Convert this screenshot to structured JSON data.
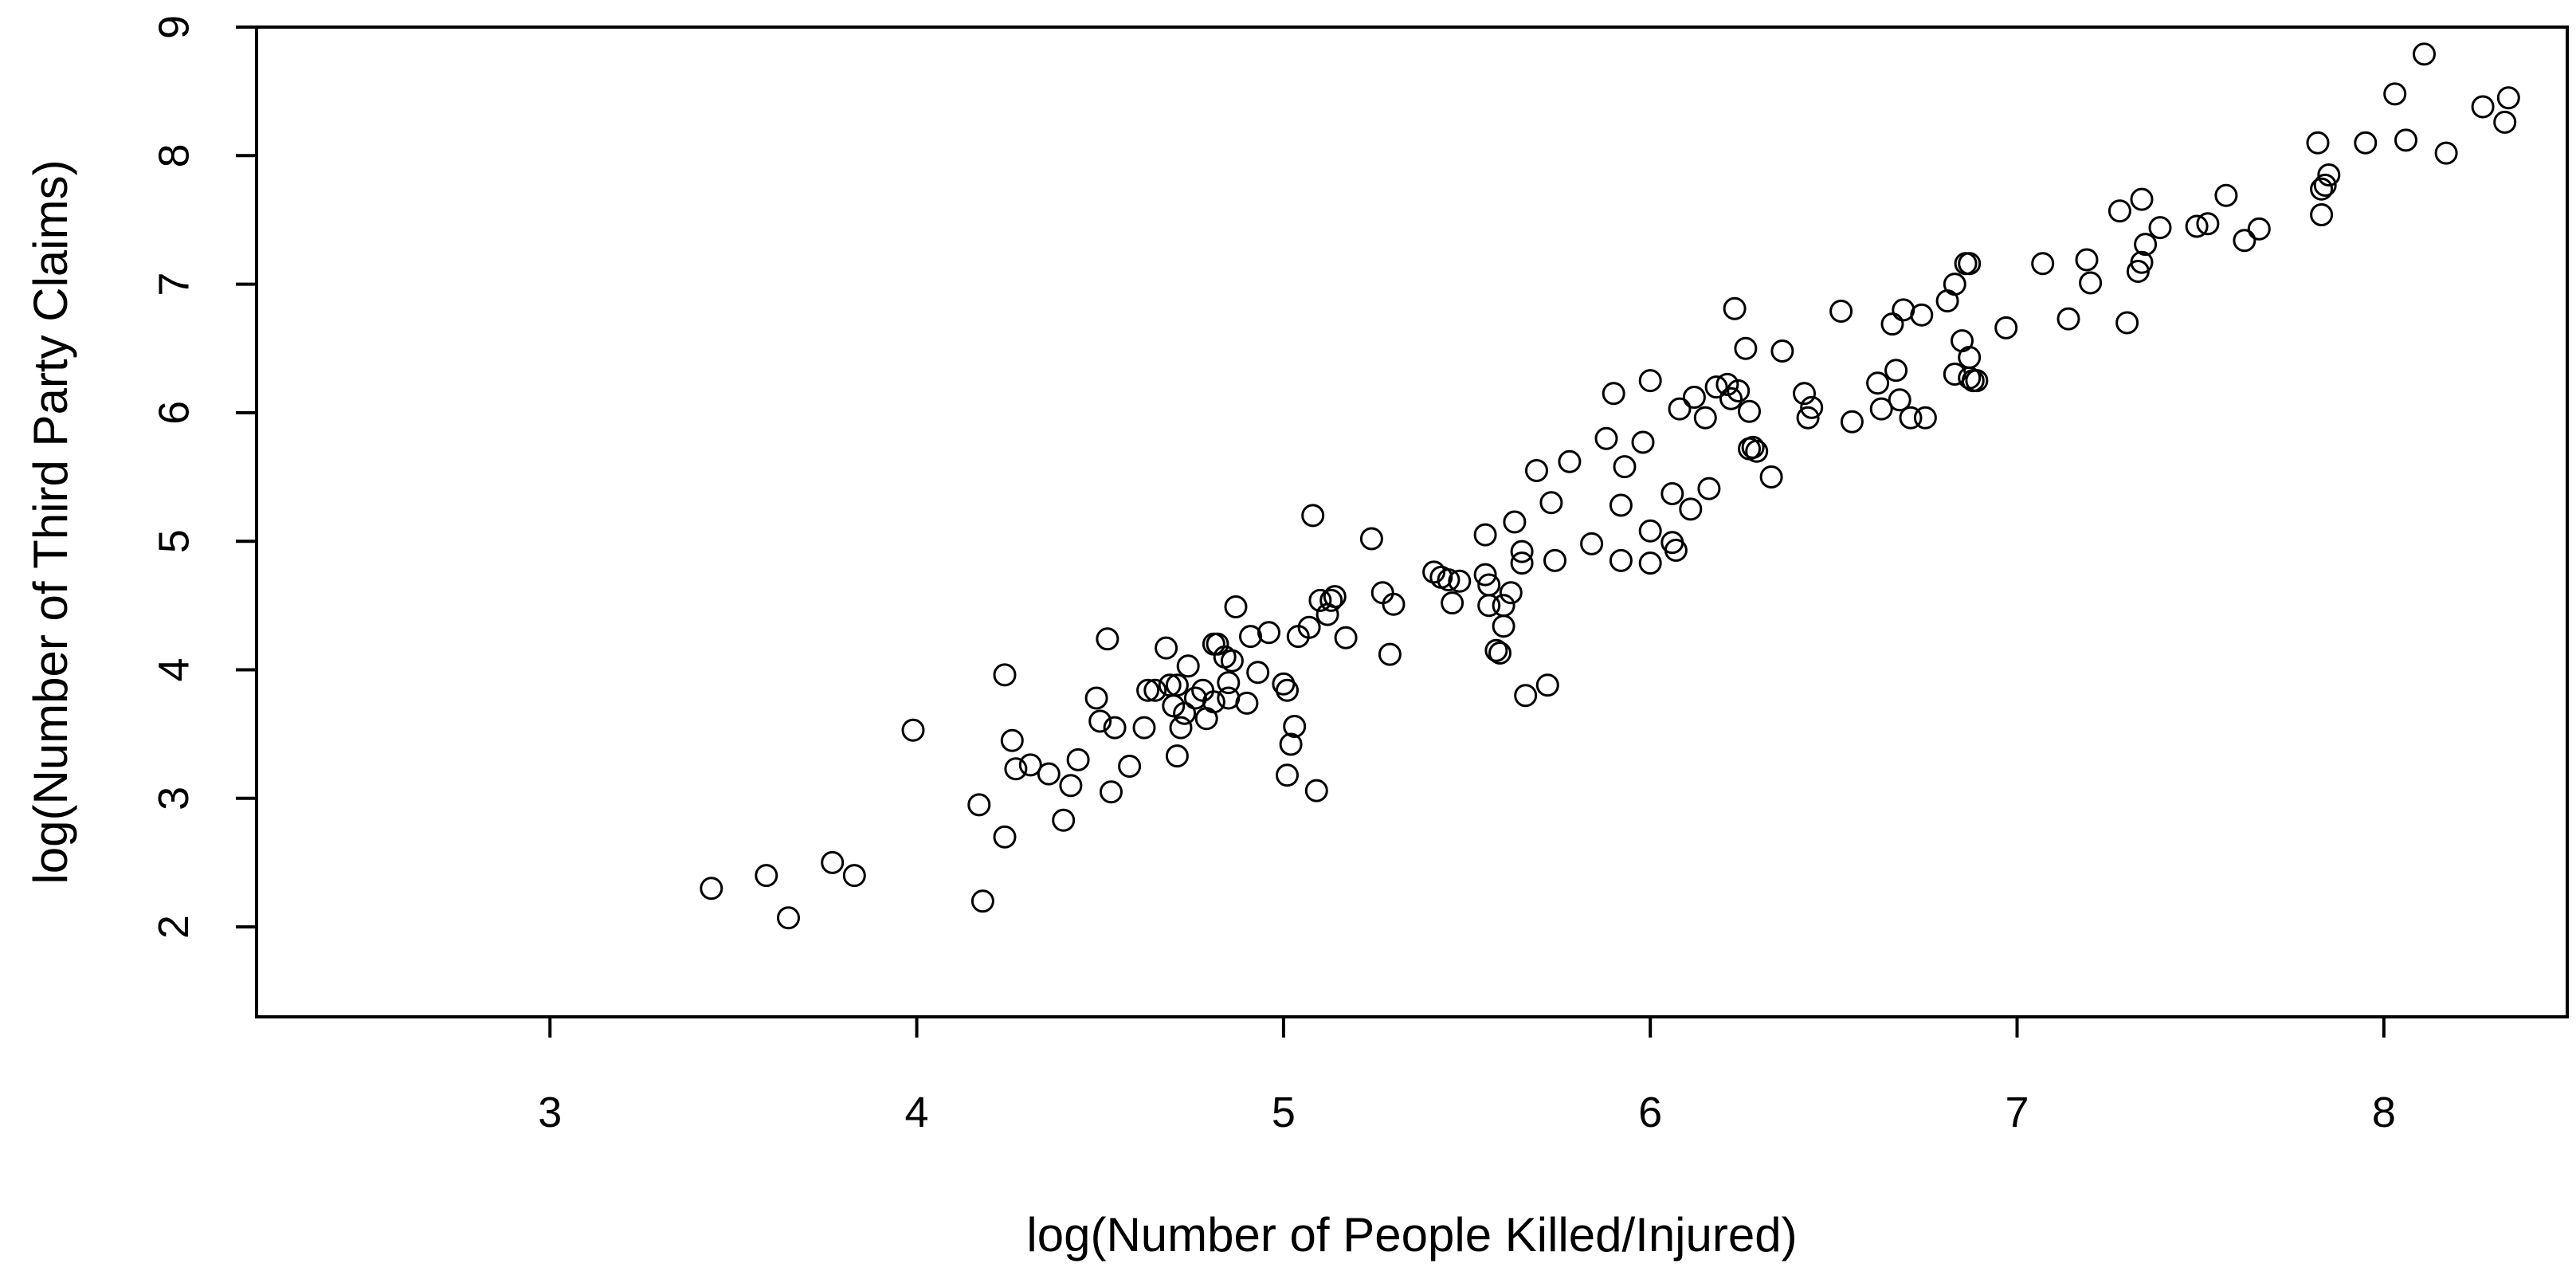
{
  "chart_data": {
    "type": "scatter",
    "title": "",
    "xlabel": "log(Number of People Killed/Injured)",
    "ylabel": "log(Number of Third Party Claims)",
    "xlim": [
      2.2,
      8.5
    ],
    "ylim": [
      1.3,
      9.0
    ],
    "x_ticks": [
      3,
      4,
      5,
      6,
      7,
      8
    ],
    "y_ticks": [
      2,
      3,
      4,
      5,
      6,
      7,
      8,
      9
    ],
    "x_tick_labels": [
      "3",
      "4",
      "5",
      "6",
      "7",
      "8"
    ],
    "y_tick_labels": [
      "2",
      "3",
      "4",
      "5",
      "6",
      "7",
      "8",
      "9"
    ],
    "grid": false,
    "legend": "none",
    "marker": "open-circle",
    "marker_color": "#000000",
    "points": [
      [
        3.44,
        2.3
      ],
      [
        3.59,
        2.4
      ],
      [
        3.65,
        2.07
      ],
      [
        3.77,
        2.5
      ],
      [
        3.83,
        2.4
      ],
      [
        3.99,
        3.53
      ],
      [
        4.17,
        2.95
      ],
      [
        4.18,
        2.2
      ],
      [
        4.24,
        3.96
      ],
      [
        4.24,
        2.7
      ],
      [
        4.26,
        3.45
      ],
      [
        4.27,
        3.23
      ],
      [
        4.31,
        3.26
      ],
      [
        4.36,
        3.19
      ],
      [
        4.4,
        2.83
      ],
      [
        4.42,
        3.1
      ],
      [
        4.44,
        3.3
      ],
      [
        4.49,
        3.78
      ],
      [
        4.5,
        3.6
      ],
      [
        4.52,
        4.24
      ],
      [
        4.53,
        3.05
      ],
      [
        4.54,
        3.55
      ],
      [
        4.58,
        3.25
      ],
      [
        4.62,
        3.55
      ],
      [
        4.63,
        3.84
      ],
      [
        4.65,
        3.84
      ],
      [
        4.68,
        4.17
      ],
      [
        4.69,
        3.88
      ],
      [
        4.7,
        3.72
      ],
      [
        4.71,
        3.33
      ],
      [
        4.71,
        3.88
      ],
      [
        4.72,
        3.55
      ],
      [
        4.73,
        3.66
      ],
      [
        4.74,
        4.03
      ],
      [
        4.76,
        3.78
      ],
      [
        4.78,
        3.84
      ],
      [
        4.79,
        3.62
      ],
      [
        4.81,
        4.2
      ],
      [
        4.81,
        3.75
      ],
      [
        4.82,
        4.2
      ],
      [
        4.84,
        4.1
      ],
      [
        4.85,
        3.9
      ],
      [
        4.85,
        3.78
      ],
      [
        4.86,
        4.07
      ],
      [
        4.87,
        4.49
      ],
      [
        4.9,
        3.74
      ],
      [
        4.91,
        4.26
      ],
      [
        4.93,
        3.98
      ],
      [
        4.96,
        4.29
      ],
      [
        5.0,
        3.89
      ],
      [
        5.01,
        3.84
      ],
      [
        5.01,
        3.18
      ],
      [
        5.02,
        3.42
      ],
      [
        5.03,
        3.56
      ],
      [
        5.04,
        4.26
      ],
      [
        5.07,
        4.33
      ],
      [
        5.08,
        5.2
      ],
      [
        5.09,
        3.06
      ],
      [
        5.1,
        4.54
      ],
      [
        5.12,
        4.43
      ],
      [
        5.13,
        4.54
      ],
      [
        5.14,
        4.57
      ],
      [
        5.17,
        4.25
      ],
      [
        5.24,
        5.02
      ],
      [
        5.27,
        4.6
      ],
      [
        5.29,
        4.12
      ],
      [
        5.3,
        4.51
      ],
      [
        5.41,
        4.76
      ],
      [
        5.43,
        4.72
      ],
      [
        5.45,
        4.7
      ],
      [
        5.46,
        4.52
      ],
      [
        5.48,
        4.69
      ],
      [
        5.55,
        5.05
      ],
      [
        5.55,
        4.74
      ],
      [
        5.56,
        4.66
      ],
      [
        5.56,
        4.5
      ],
      [
        5.58,
        4.15
      ],
      [
        5.59,
        4.13
      ],
      [
        5.6,
        4.5
      ],
      [
        5.6,
        4.34
      ],
      [
        5.62,
        4.6
      ],
      [
        5.63,
        5.15
      ],
      [
        5.65,
        4.92
      ],
      [
        5.65,
        4.83
      ],
      [
        5.66,
        3.8
      ],
      [
        5.69,
        5.55
      ],
      [
        5.72,
        3.88
      ],
      [
        5.73,
        5.3
      ],
      [
        5.74,
        4.85
      ],
      [
        5.78,
        5.62
      ],
      [
        5.84,
        4.98
      ],
      [
        5.88,
        5.8
      ],
      [
        5.9,
        6.15
      ],
      [
        5.92,
        5.28
      ],
      [
        5.92,
        4.85
      ],
      [
        5.93,
        5.58
      ],
      [
        5.98,
        5.77
      ],
      [
        6.0,
        6.25
      ],
      [
        6.0,
        5.08
      ],
      [
        6.0,
        4.83
      ],
      [
        6.06,
        5.37
      ],
      [
        6.06,
        4.99
      ],
      [
        6.07,
        4.93
      ],
      [
        6.08,
        6.03
      ],
      [
        6.11,
        5.25
      ],
      [
        6.12,
        6.12
      ],
      [
        6.15,
        5.96
      ],
      [
        6.16,
        5.41
      ],
      [
        6.18,
        6.2
      ],
      [
        6.21,
        6.22
      ],
      [
        6.22,
        6.11
      ],
      [
        6.23,
        6.81
      ],
      [
        6.24,
        6.17
      ],
      [
        6.26,
        6.5
      ],
      [
        6.27,
        6.01
      ],
      [
        6.27,
        5.72
      ],
      [
        6.28,
        5.73
      ],
      [
        6.29,
        5.7
      ],
      [
        6.33,
        5.5
      ],
      [
        6.36,
        6.48
      ],
      [
        6.42,
        6.15
      ],
      [
        6.43,
        5.96
      ],
      [
        6.44,
        6.04
      ],
      [
        6.52,
        6.79
      ],
      [
        6.55,
        5.93
      ],
      [
        6.62,
        6.23
      ],
      [
        6.63,
        6.03
      ],
      [
        6.66,
        6.69
      ],
      [
        6.67,
        6.33
      ],
      [
        6.68,
        6.1
      ],
      [
        6.69,
        6.8
      ],
      [
        6.71,
        5.96
      ],
      [
        6.74,
        6.76
      ],
      [
        6.75,
        5.96
      ],
      [
        6.81,
        6.87
      ],
      [
        6.83,
        7.0
      ],
      [
        6.83,
        6.3
      ],
      [
        6.85,
        6.56
      ],
      [
        6.86,
        7.16
      ],
      [
        6.87,
        7.16
      ],
      [
        6.87,
        6.43
      ],
      [
        6.87,
        6.27
      ],
      [
        6.88,
        6.25
      ],
      [
        6.89,
        6.25
      ],
      [
        6.97,
        6.66
      ],
      [
        7.07,
        7.16
      ],
      [
        7.14,
        6.73
      ],
      [
        7.19,
        7.19
      ],
      [
        7.2,
        7.01
      ],
      [
        7.28,
        7.57
      ],
      [
        7.3,
        6.7
      ],
      [
        7.33,
        7.1
      ],
      [
        7.34,
        7.66
      ],
      [
        7.34,
        7.17
      ],
      [
        7.35,
        7.31
      ],
      [
        7.39,
        7.44
      ],
      [
        7.49,
        7.45
      ],
      [
        7.52,
        7.47
      ],
      [
        7.57,
        7.69
      ],
      [
        7.62,
        7.34
      ],
      [
        7.66,
        7.43
      ],
      [
        7.82,
        8.1
      ],
      [
        7.83,
        7.74
      ],
      [
        7.83,
        7.54
      ],
      [
        7.84,
        7.77
      ],
      [
        7.85,
        7.85
      ],
      [
        7.95,
        8.1
      ],
      [
        8.03,
        8.48
      ],
      [
        8.06,
        8.12
      ],
      [
        8.11,
        8.79
      ],
      [
        8.17,
        8.02
      ],
      [
        8.27,
        8.38
      ],
      [
        8.33,
        8.26
      ],
      [
        8.34,
        8.45
      ]
    ]
  }
}
